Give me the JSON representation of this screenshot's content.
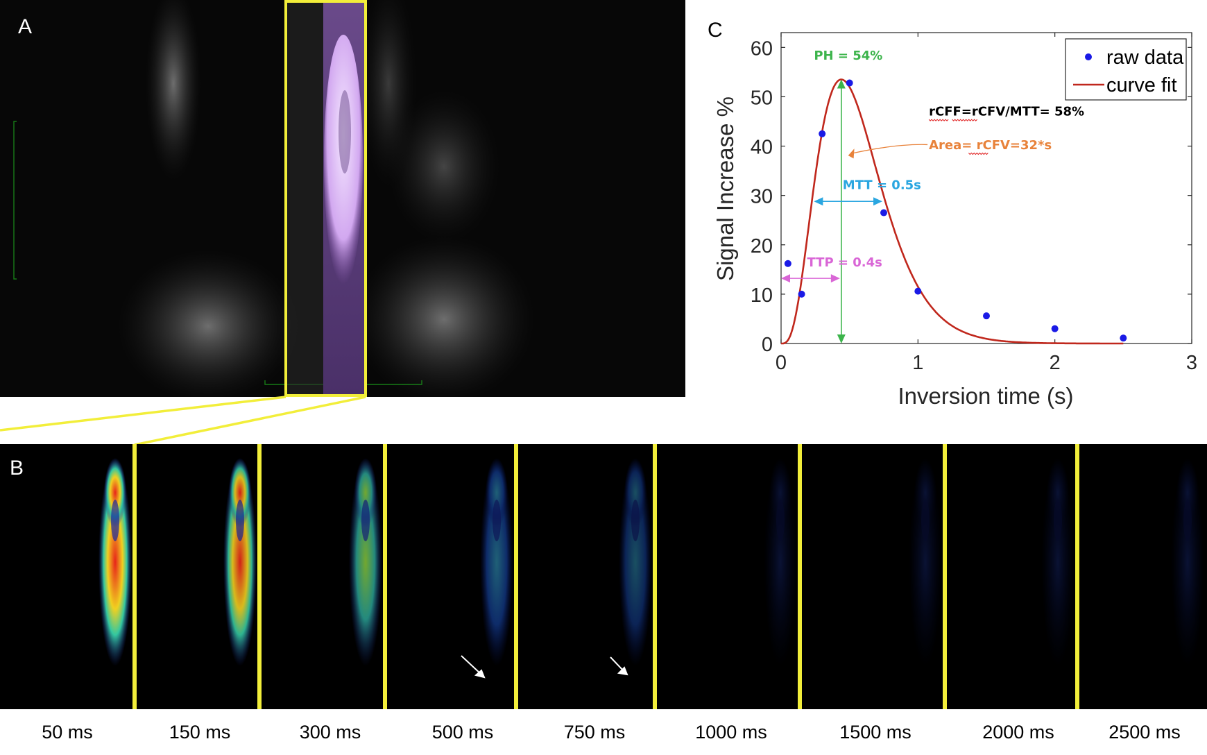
{
  "panel_a": {
    "letter": "A"
  },
  "panel_b": {
    "letter": "B",
    "frames": [
      {
        "label": "50 ms",
        "intensity": 1.0
      },
      {
        "label": "150 ms",
        "intensity": 0.9
      },
      {
        "label": "300 ms",
        "intensity": 0.75
      },
      {
        "label": "500 ms",
        "intensity": 0.55
      },
      {
        "label": "750 ms",
        "intensity": 0.45
      },
      {
        "label": "1000 ms",
        "intensity": 0.25
      },
      {
        "label": "1500 ms",
        "intensity": 0.2
      },
      {
        "label": "2000 ms",
        "intensity": 0.08
      },
      {
        "label": "2500 ms",
        "intensity": 0.04
      }
    ]
  },
  "panel_c": {
    "letter": "C"
  },
  "colors": {
    "raw": "#1a1ae6",
    "fit": "#c0271c",
    "ph": "#3cb44b",
    "mtt": "#2aa6e0",
    "ttp": "#d966d6",
    "area": "#e8823a",
    "highlight": "#f2ee3a"
  },
  "chart_data": {
    "type": "scatter",
    "xlabel": "Inversion time (s)",
    "ylabel": "Signal Increase %",
    "xlim": [
      0,
      3
    ],
    "ylim": [
      0,
      63
    ],
    "xticks": [
      0,
      1,
      2,
      3
    ],
    "yticks": [
      0,
      10,
      20,
      30,
      40,
      50,
      60
    ],
    "legend_position": "top-right",
    "series": [
      {
        "name": "raw data",
        "kind": "points",
        "x": [
          0.05,
          0.15,
          0.3,
          0.5,
          0.75,
          1.0,
          1.5,
          2.0,
          2.5
        ],
        "y": [
          16.2,
          10,
          42.5,
          52.8,
          26.5,
          10.6,
          5.6,
          3,
          1.1
        ]
      },
      {
        "name": "curve fit",
        "kind": "line",
        "model": {
          "peak_time": 0.44,
          "peak_height": 53.5,
          "shape": 3.4
        }
      }
    ],
    "annotations": {
      "ph": "PH = 54%",
      "rcff": "rCFF=rCFV/MTT= 58%",
      "area": "Area= rCFV=32*s",
      "mtt": "MTT = 0.5s",
      "ttp": "TTP = 0.4s"
    }
  }
}
